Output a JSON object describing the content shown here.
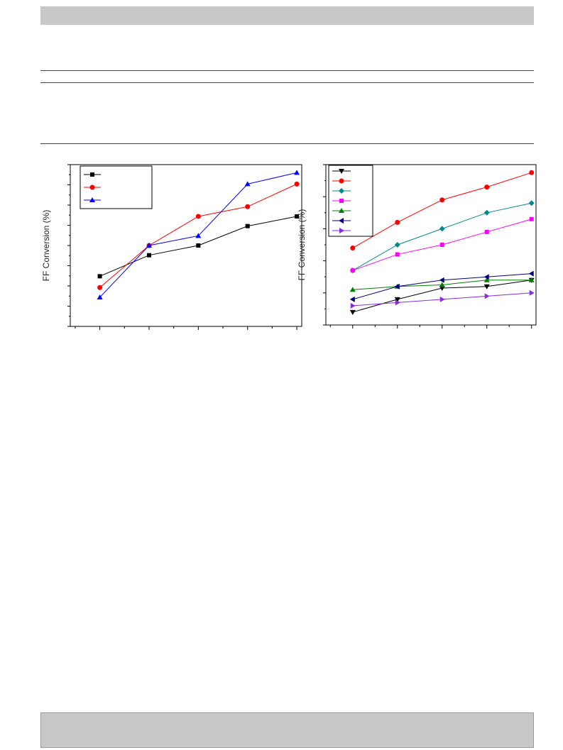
{
  "chart_data": [
    {
      "type": "line",
      "ylabel": "FF Conversion (%)",
      "x": [
        1,
        2,
        3,
        4,
        5
      ],
      "xlim": [
        0.4,
        5.1
      ],
      "ylim": [
        0,
        100
      ],
      "series": [
        {
          "marker": "square",
          "color": "#000000",
          "values": [
            31,
            44,
            50,
            62,
            68
          ]
        },
        {
          "marker": "circle",
          "color": "#ff0000",
          "values": [
            24,
            50,
            68,
            74,
            88
          ]
        },
        {
          "marker": "triangle-up",
          "color": "#0000ff",
          "values": [
            18,
            50,
            56,
            88,
            95
          ]
        }
      ],
      "legend_position": "top-left"
    },
    {
      "type": "line",
      "ylabel": "FF Conversion (%)",
      "x": [
        1,
        2,
        3,
        4,
        5
      ],
      "xlim": [
        0.4,
        5.1
      ],
      "ylim": [
        0,
        100
      ],
      "series": [
        {
          "marker": "triangle-down",
          "color": "#000000",
          "values": [
            8,
            16,
            23,
            24,
            28
          ]
        },
        {
          "marker": "circle",
          "color": "#ff0000",
          "values": [
            48,
            64,
            78,
            86,
            95
          ]
        },
        {
          "marker": "diamond",
          "color": "#008b8b",
          "values": [
            34,
            50,
            60,
            70,
            76
          ]
        },
        {
          "marker": "square",
          "color": "#ff00ff",
          "values": [
            34,
            44,
            50,
            58,
            66
          ]
        },
        {
          "marker": "triangle-up",
          "color": "#008000",
          "values": [
            22,
            24,
            25,
            28,
            28
          ]
        },
        {
          "marker": "triangle-left",
          "color": "#000080",
          "values": [
            16,
            24,
            28,
            30,
            32
          ]
        },
        {
          "marker": "triangle-right",
          "color": "#8a2be2",
          "values": [
            12,
            14,
            16,
            18,
            20
          ]
        }
      ],
      "legend_position": "top-left"
    }
  ]
}
